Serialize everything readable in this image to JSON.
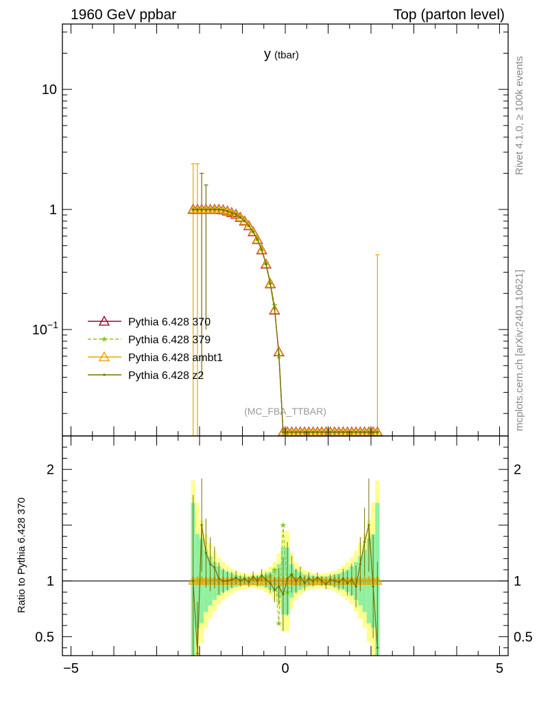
{
  "header": {
    "left": "1960 GeV ppbar",
    "right": "Top (parton level)"
  },
  "side_text": {
    "rivet": "Rivet 4.1.0, ≥ 100k events",
    "mcplots": "mcplots.cern.ch [arXiv:2401.10621]"
  },
  "plot_title": {
    "main": "y",
    "sub": "(tbar)"
  },
  "analysis_label": "(MC_FBA_TTBAR)",
  "ratio_ylabel": "Ratio to Pythia 6.428 370",
  "main_yticks": [
    {
      "value": 10,
      "label": "10"
    },
    {
      "value": 1,
      "label": "1"
    },
    {
      "value": 0.1,
      "label": "10",
      "exp": "−1"
    }
  ],
  "ratio_yticks": [
    {
      "value": 2,
      "label": "2"
    },
    {
      "value": 1,
      "label": "1"
    },
    {
      "value": 0.5,
      "label": "0.5"
    }
  ],
  "xticks": [
    {
      "value": -5,
      "label": "−5"
    },
    {
      "value": 0,
      "label": "0"
    },
    {
      "value": 5,
      "label": "5"
    }
  ],
  "colors": {
    "p370": "#a0002a",
    "p379": "#8fc420",
    "ambt1": "#f0a000",
    "z2": "#707000",
    "band_green": "#90f0a0",
    "band_yellow": "#ffff90"
  },
  "chart_data": {
    "type": "line",
    "log_y": true,
    "xlim": [
      -5.2,
      5.2
    ],
    "ylim": [
      0.013,
      35
    ],
    "ratio_ylim": [
      0.33,
      2.3
    ],
    "x": [
      -2.15,
      -2.05,
      -1.95,
      -1.85,
      -1.75,
      -1.65,
      -1.55,
      -1.45,
      -1.35,
      -1.25,
      -1.15,
      -1.05,
      -0.95,
      -0.85,
      -0.75,
      -0.65,
      -0.55,
      -0.45,
      -0.35,
      -0.25,
      -0.15,
      -0.05,
      0.05,
      0.15,
      0.25,
      0.35,
      0.45,
      0.55,
      0.65,
      0.75,
      0.85,
      0.95,
      1.05,
      1.15,
      1.25,
      1.35,
      1.45,
      1.55,
      1.65,
      1.75,
      1.85,
      1.95,
      2.05,
      2.15
    ],
    "series": [
      {
        "name": "Pythia 6.428 370",
        "key": "p370",
        "values": [
          1.0,
          1.0,
          1.0,
          1.0,
          1.0,
          1.0,
          1.0,
          0.99,
          0.97,
          0.94,
          0.91,
          0.86,
          0.8,
          0.73,
          0.65,
          0.56,
          0.46,
          0.35,
          0.24,
          0.145,
          0.065,
          0.014,
          0.014,
          0.014,
          0.014,
          0.014,
          0.014,
          0.014,
          0.014,
          0.014,
          0.014,
          0.014,
          0.014,
          0.014,
          0.014,
          0.014,
          0.014,
          0.014,
          0.014,
          0.014,
          0.014,
          0.014,
          0.014,
          0.014
        ]
      },
      {
        "name": "Pythia 6.428 379",
        "key": "p379",
        "values": [
          1.0,
          1.0,
          1.0,
          1.0,
          1.0,
          1.01,
          1.0,
          0.99,
          0.97,
          0.95,
          0.92,
          0.87,
          0.81,
          0.74,
          0.66,
          0.57,
          0.47,
          0.36,
          0.25,
          0.16,
          0.06,
          0.014,
          0.014,
          0.014,
          0.014,
          0.014,
          0.014,
          0.014,
          0.014,
          0.014,
          0.014,
          0.014,
          0.014,
          0.014,
          0.014,
          0.014,
          0.014,
          0.014,
          0.014,
          0.014,
          0.014,
          0.014,
          0.014,
          0.014
        ]
      },
      {
        "name": "Pythia 6.428 ambt1",
        "key": "ambt1",
        "values": [
          1.0,
          1.0,
          1.0,
          1.0,
          1.0,
          1.0,
          1.0,
          0.99,
          0.97,
          0.94,
          0.91,
          0.86,
          0.8,
          0.73,
          0.65,
          0.56,
          0.46,
          0.35,
          0.24,
          0.145,
          0.065,
          0.014,
          0.014,
          0.014,
          0.014,
          0.014,
          0.014,
          0.014,
          0.014,
          0.014,
          0.014,
          0.014,
          0.014,
          0.014,
          0.014,
          0.014,
          0.014,
          0.014,
          0.014,
          0.014,
          0.014,
          0.014,
          0.014,
          0.014
        ]
      },
      {
        "name": "Pythia 6.428 z2",
        "key": "z2",
        "values": [
          1.0,
          1.0,
          1.0,
          1.0,
          1.0,
          1.0,
          1.0,
          0.99,
          0.97,
          0.94,
          0.91,
          0.86,
          0.8,
          0.73,
          0.65,
          0.56,
          0.46,
          0.35,
          0.24,
          0.15,
          0.062,
          0.014,
          0.014,
          0.014,
          0.014,
          0.014,
          0.014,
          0.014,
          0.014,
          0.014,
          0.014,
          0.014,
          0.014,
          0.014,
          0.014,
          0.014,
          0.014,
          0.014,
          0.014,
          0.014,
          0.014,
          0.014,
          0.014,
          0.014
        ]
      }
    ],
    "ratio_series": [
      {
        "name": "Pythia 6.428 379",
        "key": "p379",
        "values": [
          1.0,
          1.0,
          1.0,
          1.0,
          1.0,
          1.01,
          1.0,
          1.0,
          1.0,
          1.01,
          1.01,
          1.01,
          1.01,
          1.01,
          1.02,
          1.02,
          1.02,
          1.03,
          1.04,
          1.1,
          0.62,
          1.5,
          0.9,
          1.05,
          0.98,
          1.02,
          1.0,
          1.01,
          1.0,
          1.02,
          1.01,
          1.0,
          1.0,
          1.01,
          1.0,
          1.0,
          1.0,
          1.0,
          1.0,
          1.0,
          1.0,
          1.0,
          1.0,
          1.0
        ]
      },
      {
        "name": "Pythia 6.428 ambt1",
        "key": "ambt1",
        "values": [
          1.0,
          1.0,
          1.0,
          1.0,
          1.0,
          1.0,
          1.0,
          1.0,
          1.0,
          1.0,
          1.0,
          1.0,
          1.0,
          1.0,
          1.0,
          1.0,
          1.0,
          1.0,
          1.0,
          1.0,
          1.0,
          1.0,
          1.0,
          1.0,
          1.0,
          1.0,
          1.0,
          1.0,
          1.0,
          1.0,
          1.0,
          1.0,
          1.0,
          1.0,
          1.0,
          1.0,
          1.0,
          1.0,
          1.0,
          1.0,
          1.0,
          1.0,
          1.0,
          1.0
        ]
      },
      {
        "name": "Pythia 6.428 z2",
        "key": "z2",
        "values": [
          1.0,
          0.35,
          1.5,
          1.25,
          1.15,
          1.12,
          1.02,
          1.0,
          1.0,
          1.01,
          1.03,
          1.0,
          1.02,
          0.99,
          1.04,
          1.0,
          1.05,
          1.01,
          0.98,
          0.92,
          0.95,
          0.88,
          1.02,
          1.06,
          1.0,
          1.04,
          0.98,
          1.02,
          1.0,
          1.03,
          1.0,
          0.97,
          1.01,
          1.0,
          0.99,
          1.02,
          0.98,
          1.01,
          0.95,
          1.15,
          1.35,
          1.5,
          0.95,
          0.4
        ]
      }
    ],
    "ratio_band_green": [
      0.7,
      0.42,
      0.38,
      0.28,
      0.22,
      0.17,
      0.13,
      0.1,
      0.08,
      0.065,
      0.055,
      0.045,
      0.04,
      0.04,
      0.04,
      0.045,
      0.05,
      0.06,
      0.08,
      0.1,
      0.15,
      0.3,
      0.3,
      0.15,
      0.1,
      0.08,
      0.06,
      0.05,
      0.045,
      0.04,
      0.04,
      0.04,
      0.045,
      0.055,
      0.065,
      0.08,
      0.1,
      0.13,
      0.17,
      0.22,
      0.28,
      0.38,
      0.42,
      0.7
    ],
    "ratio_band_yellow": [
      0.9,
      0.7,
      0.55,
      0.42,
      0.34,
      0.27,
      0.21,
      0.17,
      0.14,
      0.11,
      0.09,
      0.08,
      0.07,
      0.065,
      0.065,
      0.07,
      0.08,
      0.1,
      0.13,
      0.17,
      0.25,
      0.45,
      0.45,
      0.25,
      0.17,
      0.13,
      0.1,
      0.08,
      0.07,
      0.065,
      0.065,
      0.07,
      0.08,
      0.09,
      0.11,
      0.14,
      0.17,
      0.21,
      0.27,
      0.34,
      0.42,
      0.55,
      0.7,
      0.9
    ]
  }
}
